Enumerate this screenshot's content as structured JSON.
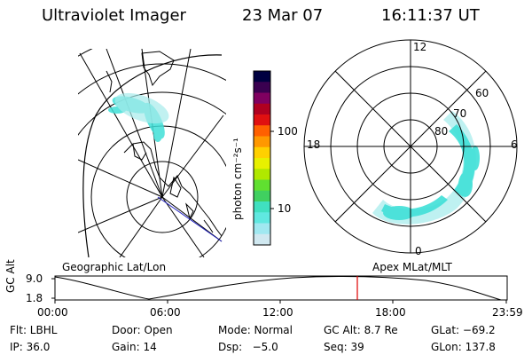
{
  "header": {
    "instrument": "Ultraviolet Imager",
    "date": "23 Mar 07",
    "time": "16:11:37 UT"
  },
  "colorbar": {
    "unit_label": "photon cm⁻²s⁻¹",
    "ticks": [
      "100",
      "10"
    ],
    "colors": [
      "#000040",
      "#3a0050",
      "#800060",
      "#b00020",
      "#e01010",
      "#ff6000",
      "#ff9800",
      "#ffd000",
      "#e8f000",
      "#b0e800",
      "#60e030",
      "#40d060",
      "#40e0c0",
      "#60e8e0",
      "#a0e8f0",
      "#d0e8f0"
    ]
  },
  "geo_map": {
    "label": "Geographic Lat/Lon",
    "aurora_color": "#40e0d8"
  },
  "polar_plot": {
    "label": "Apex MLat/MLT",
    "mlt_labels": {
      "top": "12",
      "bottom": "0",
      "left": "18",
      "right": "6"
    },
    "lat_labels": [
      "60",
      "70",
      "80"
    ],
    "aurora_color": "#40e0d8"
  },
  "timeline": {
    "ylabel": "GC Alt",
    "y_ticks": [
      "9.0",
      "1.8"
    ],
    "x_ticks": [
      "00:00",
      "06:00",
      "12:00",
      "18:00",
      "23:59"
    ],
    "marker_color": "#e00000"
  },
  "status": {
    "filter": "Flt: LBHL",
    "door": "Door: Open",
    "mode": "Mode: Normal",
    "gc_alt": "GC Alt: 8.7 Re",
    "glat": "GLat: −69.2",
    "ip": "IP: 36.0",
    "gain": "Gain: 14",
    "dsp": "Dsp:   −5.0",
    "seq": "Seq: 39",
    "glon": "GLon: 137.8"
  }
}
